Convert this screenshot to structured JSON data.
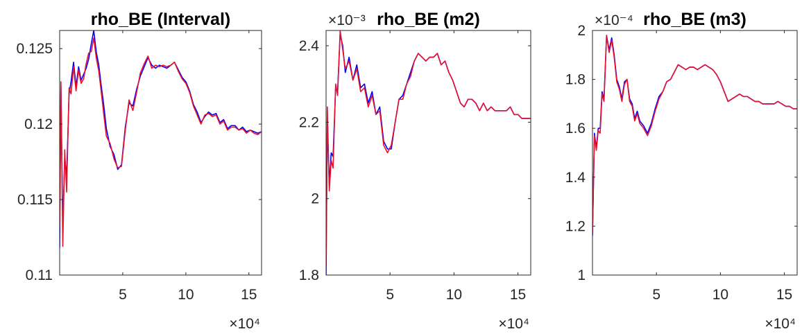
{
  "chart_data": [
    {
      "type": "line",
      "title": "rho_BE (Interval)",
      "xlim": [
        0,
        160000
      ],
      "ylim": [
        0.11,
        0.1262
      ],
      "xticks": [
        50000,
        100000,
        150000
      ],
      "xtick_labels": [
        "5",
        "10",
        "15"
      ],
      "yticks": [
        0.11,
        0.115,
        0.12,
        0.125
      ],
      "ytick_labels": [
        "0.11",
        "0.115",
        "0.12",
        "0.125"
      ],
      "x_multiplier": "×10⁴",
      "y_multiplier": "",
      "grid": false,
      "series": [
        {
          "color": "#0000ff",
          "x": [
            0,
            1000,
            2500,
            4000,
            5500,
            7500,
            9000,
            11000,
            13000,
            15000,
            17000,
            19000,
            21000,
            23000,
            25000,
            27000,
            29000,
            31000,
            33000,
            35000,
            37000,
            40000,
            43000,
            46000,
            49000,
            52000,
            55000,
            58000,
            61000,
            64000,
            67000,
            70000,
            73000,
            76000,
            79000,
            82000,
            85000,
            88000,
            91000,
            94000,
            97000,
            100000,
            103000,
            106000,
            109000,
            112000,
            115000,
            118000,
            121000,
            124000,
            127000,
            130000,
            133000,
            136000,
            139000,
            142000,
            145000,
            148000,
            151000,
            154000,
            157000,
            160000
          ],
          "y": [
            0.1118,
            0.1225,
            0.1132,
            0.1178,
            0.1165,
            0.122,
            0.1228,
            0.1241,
            0.1225,
            0.1238,
            0.1229,
            0.1233,
            0.1237,
            0.1243,
            0.1253,
            0.1262,
            0.1248,
            0.1239,
            0.1225,
            0.1212,
            0.1197,
            0.1185,
            0.118,
            0.117,
            0.1173,
            0.1198,
            0.1214,
            0.1212,
            0.1223,
            0.1232,
            0.1238,
            0.1244,
            0.1239,
            0.1237,
            0.1239,
            0.1238,
            0.1237,
            0.1239,
            0.1241,
            0.1236,
            0.1231,
            0.1228,
            0.1222,
            0.1213,
            0.1208,
            0.1201,
            0.1205,
            0.1208,
            0.1206,
            0.1207,
            0.1201,
            0.1203,
            0.1197,
            0.1199,
            0.1199,
            0.1196,
            0.1198,
            0.1195,
            0.1196,
            0.1195,
            0.1194,
            0.1195
          ]
        },
        {
          "color": "#e8102a",
          "x": [
            0,
            1000,
            2500,
            4000,
            5500,
            7500,
            9000,
            11000,
            13000,
            15000,
            17000,
            19000,
            21000,
            23000,
            25000,
            27000,
            29000,
            31000,
            33000,
            35000,
            37000,
            40000,
            43000,
            46000,
            49000,
            52000,
            55000,
            58000,
            61000,
            64000,
            67000,
            70000,
            73000,
            76000,
            79000,
            82000,
            85000,
            88000,
            91000,
            94000,
            97000,
            100000,
            103000,
            106000,
            109000,
            112000,
            115000,
            118000,
            121000,
            124000,
            127000,
            130000,
            133000,
            136000,
            139000,
            142000,
            145000,
            148000,
            151000,
            154000,
            157000,
            160000
          ],
          "y": [
            0.1132,
            0.1228,
            0.1119,
            0.1183,
            0.1155,
            0.1224,
            0.122,
            0.1238,
            0.1222,
            0.1236,
            0.1227,
            0.123,
            0.124,
            0.1247,
            0.1248,
            0.1257,
            0.1244,
            0.1235,
            0.1221,
            0.1206,
            0.1192,
            0.1187,
            0.1177,
            0.1171,
            0.1172,
            0.1196,
            0.1216,
            0.1209,
            0.1221,
            0.1234,
            0.124,
            0.1245,
            0.1237,
            0.1239,
            0.1238,
            0.1239,
            0.1238,
            0.1239,
            0.1241,
            0.1235,
            0.123,
            0.1227,
            0.1221,
            0.1212,
            0.1206,
            0.12,
            0.1206,
            0.1207,
            0.1205,
            0.1206,
            0.12,
            0.1202,
            0.1196,
            0.1198,
            0.1198,
            0.1196,
            0.1197,
            0.1194,
            0.1196,
            0.1194,
            0.1193,
            0.1195
          ]
        }
      ]
    },
    {
      "type": "line",
      "title": "rho_BE (m2)",
      "xlim": [
        0,
        160000
      ],
      "ylim": [
        1.8,
        2.44
      ],
      "xticks": [
        50000,
        100000,
        150000
      ],
      "xtick_labels": [
        "5",
        "10",
        "15"
      ],
      "yticks": [
        1.8,
        2.0,
        2.2,
        2.4
      ],
      "ytick_labels": [
        "1.8",
        "2",
        "2.2",
        "2.4"
      ],
      "x_multiplier": "×10⁴",
      "y_multiplier": "×10⁻³",
      "grid": false,
      "series": [
        {
          "color": "#0000ff",
          "x": [
            0,
            1000,
            2500,
            4000,
            5500,
            7500,
            9000,
            11000,
            13000,
            15000,
            18000,
            21000,
            24000,
            27000,
            30000,
            33000,
            36000,
            39000,
            42000,
            45000,
            48000,
            51000,
            54000,
            57000,
            60000,
            63000,
            66000,
            69000,
            72000,
            75000,
            78000,
            81000,
            84000,
            87000,
            90000,
            93000,
            96000,
            99000,
            102000,
            105000,
            108000,
            111000,
            114000,
            117000,
            120000,
            123000,
            126000,
            129000,
            132000,
            135000,
            138000,
            141000,
            144000,
            147000,
            150000,
            153000,
            156000,
            160000
          ],
          "y": [
            1.8,
            2.2,
            2.04,
            2.12,
            2.11,
            2.29,
            2.28,
            2.43,
            2.4,
            2.33,
            2.37,
            2.31,
            2.35,
            2.29,
            2.3,
            2.25,
            2.28,
            2.22,
            2.24,
            2.15,
            2.13,
            2.13,
            2.2,
            2.26,
            2.27,
            2.3,
            2.33,
            2.36,
            2.38,
            2.37,
            2.36,
            2.37,
            2.37,
            2.38,
            2.35,
            2.36,
            2.33,
            2.31,
            2.28,
            2.25,
            2.24,
            2.26,
            2.26,
            2.25,
            2.23,
            2.25,
            2.23,
            2.24,
            2.23,
            2.23,
            2.23,
            2.23,
            2.24,
            2.22,
            2.22,
            2.21,
            2.21,
            2.21
          ]
        },
        {
          "color": "#e8102a",
          "x": [
            0,
            1000,
            2500,
            4000,
            5500,
            7500,
            9000,
            11000,
            13000,
            15000,
            18000,
            21000,
            24000,
            27000,
            30000,
            33000,
            36000,
            39000,
            42000,
            45000,
            48000,
            51000,
            54000,
            57000,
            60000,
            63000,
            66000,
            69000,
            72000,
            75000,
            78000,
            81000,
            84000,
            87000,
            90000,
            93000,
            96000,
            99000,
            102000,
            105000,
            108000,
            111000,
            114000,
            117000,
            120000,
            123000,
            126000,
            129000,
            132000,
            135000,
            138000,
            141000,
            144000,
            147000,
            150000,
            153000,
            156000,
            160000
          ],
          "y": [
            1.82,
            2.24,
            2.02,
            2.1,
            2.08,
            2.3,
            2.27,
            2.44,
            2.39,
            2.34,
            2.36,
            2.31,
            2.34,
            2.28,
            2.29,
            2.24,
            2.27,
            2.22,
            2.23,
            2.14,
            2.12,
            2.14,
            2.2,
            2.26,
            2.26,
            2.3,
            2.32,
            2.36,
            2.38,
            2.37,
            2.36,
            2.37,
            2.37,
            2.38,
            2.35,
            2.36,
            2.33,
            2.31,
            2.28,
            2.25,
            2.24,
            2.26,
            2.26,
            2.25,
            2.23,
            2.25,
            2.23,
            2.24,
            2.23,
            2.23,
            2.23,
            2.23,
            2.24,
            2.22,
            2.22,
            2.21,
            2.21,
            2.21
          ]
        }
      ]
    },
    {
      "type": "line",
      "title": "rho_BE (m3)",
      "xlim": [
        0,
        160000
      ],
      "ylim": [
        1.0,
        2.0
      ],
      "xticks": [
        50000,
        100000,
        150000
      ],
      "xtick_labels": [
        "5",
        "10",
        "15"
      ],
      "yticks": [
        1.0,
        1.2,
        1.4,
        1.6,
        1.8,
        2.0
      ],
      "ytick_labels": [
        "1",
        "1.2",
        "1.4",
        "1.6",
        "1.8",
        "2"
      ],
      "x_multiplier": "×10⁴",
      "y_multiplier": "×10⁻⁴",
      "grid": false,
      "series": [
        {
          "color": "#0000ff",
          "x": [
            0,
            1500,
            3000,
            4500,
            6000,
            7500,
            9000,
            11000,
            13000,
            15000,
            17000,
            19000,
            21000,
            23000,
            25000,
            27000,
            29000,
            31000,
            33000,
            35000,
            37000,
            40000,
            43000,
            46000,
            49000,
            52000,
            55000,
            58000,
            61000,
            64000,
            67000,
            70000,
            73000,
            76000,
            79000,
            82000,
            85000,
            88000,
            91000,
            94000,
            97000,
            100000,
            103000,
            106000,
            109000,
            112000,
            115000,
            118000,
            121000,
            124000,
            127000,
            130000,
            133000,
            136000,
            139000,
            142000,
            145000,
            148000,
            151000,
            154000,
            157000,
            160000
          ],
          "y": [
            1.16,
            1.58,
            1.52,
            1.6,
            1.6,
            1.75,
            1.72,
            1.98,
            1.92,
            1.97,
            1.9,
            1.8,
            1.77,
            1.72,
            1.79,
            1.8,
            1.72,
            1.7,
            1.64,
            1.67,
            1.63,
            1.61,
            1.58,
            1.62,
            1.68,
            1.73,
            1.75,
            1.79,
            1.8,
            1.83,
            1.86,
            1.85,
            1.84,
            1.85,
            1.85,
            1.84,
            1.85,
            1.86,
            1.85,
            1.84,
            1.82,
            1.79,
            1.75,
            1.71,
            1.72,
            1.73,
            1.74,
            1.73,
            1.73,
            1.72,
            1.71,
            1.71,
            1.7,
            1.7,
            1.7,
            1.7,
            1.71,
            1.7,
            1.69,
            1.69,
            1.68,
            1.68
          ]
        },
        {
          "color": "#e8102a",
          "x": [
            0,
            1500,
            3000,
            4500,
            6000,
            7500,
            9000,
            11000,
            13000,
            15000,
            17000,
            19000,
            21000,
            23000,
            25000,
            27000,
            29000,
            31000,
            33000,
            35000,
            37000,
            40000,
            43000,
            46000,
            49000,
            52000,
            55000,
            58000,
            61000,
            64000,
            67000,
            70000,
            73000,
            76000,
            79000,
            82000,
            85000,
            88000,
            91000,
            94000,
            97000,
            100000,
            103000,
            106000,
            109000,
            112000,
            115000,
            118000,
            121000,
            124000,
            127000,
            130000,
            133000,
            136000,
            139000,
            142000,
            145000,
            148000,
            151000,
            154000,
            157000,
            160000
          ],
          "y": [
            1.17,
            1.57,
            1.51,
            1.59,
            1.58,
            1.74,
            1.71,
            1.98,
            1.91,
            1.96,
            1.89,
            1.79,
            1.76,
            1.71,
            1.78,
            1.8,
            1.71,
            1.69,
            1.63,
            1.66,
            1.62,
            1.6,
            1.57,
            1.61,
            1.67,
            1.72,
            1.75,
            1.79,
            1.8,
            1.83,
            1.86,
            1.85,
            1.84,
            1.85,
            1.85,
            1.84,
            1.85,
            1.86,
            1.85,
            1.84,
            1.82,
            1.79,
            1.75,
            1.71,
            1.72,
            1.73,
            1.74,
            1.73,
            1.73,
            1.72,
            1.71,
            1.71,
            1.7,
            1.7,
            1.7,
            1.7,
            1.71,
            1.7,
            1.69,
            1.69,
            1.68,
            1.68
          ]
        }
      ]
    }
  ]
}
